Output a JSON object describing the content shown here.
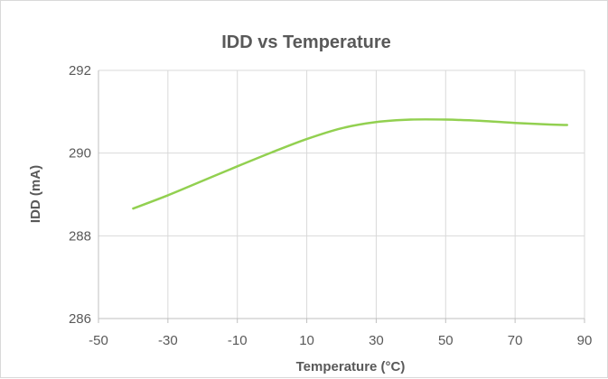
{
  "chart_data": {
    "type": "line",
    "title": "IDD vs Temperature",
    "xlabel": "Temperature (°C)",
    "ylabel": "IDD (mA)",
    "xlim": [
      -50,
      90
    ],
    "ylim": [
      286,
      292
    ],
    "x_ticks": [
      -50,
      -30,
      -10,
      10,
      30,
      50,
      70,
      90
    ],
    "y_ticks": [
      286,
      288,
      290,
      292
    ],
    "grid": true,
    "legend": "none",
    "series": [
      {
        "color": "#92d050",
        "x": [
          -40,
          -30,
          -20,
          -10,
          0,
          10,
          20,
          30,
          40,
          50,
          60,
          70,
          80,
          85
        ],
        "y": [
          288.66,
          288.98,
          289.33,
          289.68,
          290.02,
          290.34,
          290.6,
          290.75,
          290.81,
          290.81,
          290.78,
          290.73,
          290.69,
          290.68
        ]
      }
    ]
  }
}
